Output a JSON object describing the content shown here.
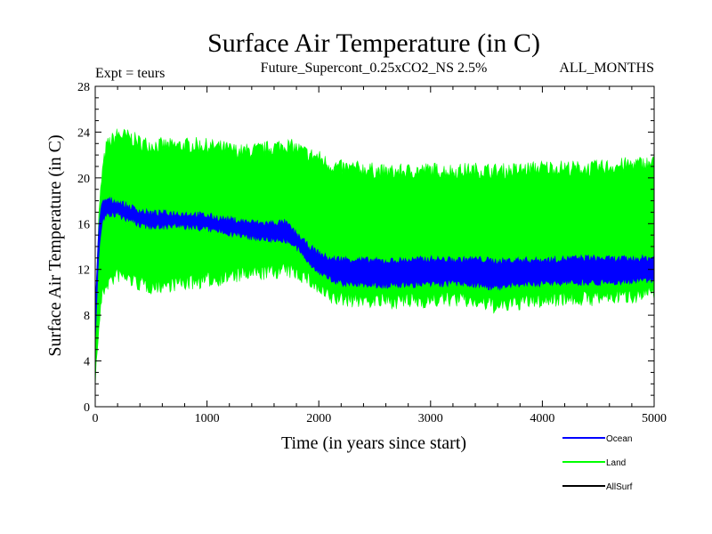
{
  "chart_data": {
    "type": "line",
    "title": "Surface Air Temperature (in C)",
    "subtitle": "Future_Supercont_0.25xCO2_NS 2.5%",
    "experiment_label": "Expt = teurs",
    "months_label": "ALL_MONTHS",
    "xlabel": "Time (in years since start)",
    "ylabel": "Surface Air Temperature (in C)",
    "xlim": [
      0,
      5000
    ],
    "ylim": [
      0,
      28
    ],
    "x_ticks": [
      0,
      1000,
      2000,
      3000,
      4000,
      5000
    ],
    "y_ticks": [
      0,
      4,
      8,
      12,
      16,
      20,
      24,
      28
    ],
    "grid": false,
    "legend_position": "bottom-right",
    "series": [
      {
        "name": "Land",
        "color": "#00ff00",
        "x": [
          0,
          30,
          60,
          100,
          200,
          300,
          400,
          500,
          700,
          900,
          1100,
          1300,
          1500,
          1700,
          1800,
          1900,
          2000,
          2100,
          2200,
          2400,
          2600,
          2800,
          3000,
          3200,
          3400,
          3600,
          3800,
          4000,
          4200,
          4400,
          4600,
          4800,
          5000
        ],
        "low": [
          2.5,
          7,
          10,
          11,
          11.8,
          11.5,
          11,
          10.8,
          11,
          11.2,
          11.5,
          11.8,
          12,
          12.2,
          12,
          11.5,
          10.5,
          9.8,
          9.7,
          9.6,
          9.5,
          9.5,
          9.6,
          9.7,
          9.5,
          9,
          9.4,
          9.6,
          9.8,
          9.7,
          9.9,
          10,
          10.2
        ],
        "high": [
          6,
          16,
          20,
          22.5,
          23.5,
          23.3,
          22.8,
          22.6,
          22.5,
          22.6,
          22.4,
          22,
          22.2,
          22.6,
          22.3,
          21.8,
          21.5,
          20.8,
          20.6,
          20.5,
          20.2,
          20.3,
          20.4,
          20.3,
          20.4,
          20.3,
          20.4,
          20.6,
          20.6,
          20.5,
          20.7,
          20.9,
          21
        ]
      },
      {
        "name": "Ocean",
        "color": "#0000ff",
        "x": [
          0,
          30,
          60,
          100,
          200,
          300,
          400,
          500,
          700,
          900,
          1100,
          1300,
          1500,
          1700,
          1800,
          1900,
          2000,
          2100,
          2200,
          2400,
          2600,
          2800,
          3000,
          3200,
          3400,
          3600,
          3800,
          4000,
          4200,
          4400,
          4600,
          4800,
          5000
        ],
        "low": [
          6,
          13,
          16.2,
          17,
          16.9,
          16.5,
          16,
          15.9,
          15.9,
          15.8,
          15.5,
          15.1,
          14.8,
          14.7,
          14,
          12.9,
          11.9,
          11.3,
          10.9,
          10.8,
          10.7,
          10.8,
          10.8,
          10.9,
          10.8,
          10.5,
          10.8,
          10.9,
          11,
          11,
          11,
          11.1,
          11.2
        ],
        "high": [
          9,
          15.5,
          17.6,
          18,
          17.8,
          17.4,
          17,
          16.8,
          16.8,
          16.7,
          16.4,
          16.1,
          15.9,
          16,
          15,
          14,
          13.3,
          12.8,
          12.8,
          12.7,
          12.6,
          12.7,
          12.8,
          12.7,
          12.8,
          12.6,
          12.7,
          12.7,
          12.8,
          12.9,
          12.8,
          12.8,
          12.9
        ]
      },
      {
        "name": "AllSurf",
        "color": "#000000",
        "x": [],
        "values": []
      }
    ]
  }
}
